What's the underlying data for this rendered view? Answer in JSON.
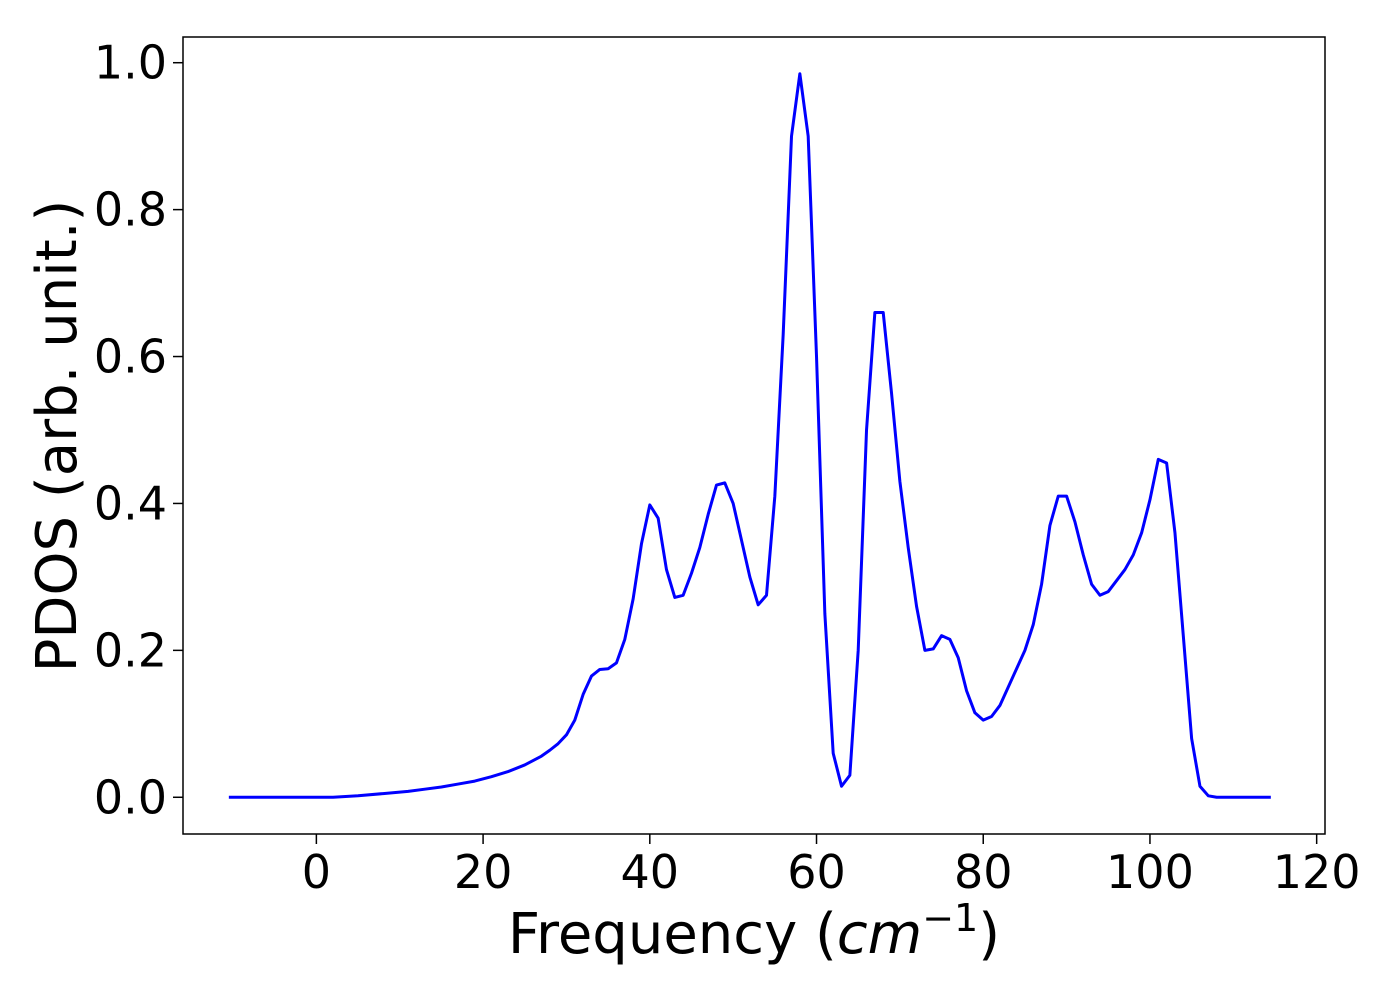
{
  "chart_data": {
    "type": "line",
    "title": "",
    "xlabel": "Frequency",
    "xlabel_unit": "cm",
    "xlabel_unit_exponent": "−1",
    "ylabel": "PDOS (arb. unit.)",
    "xlim": [
      -16,
      121
    ],
    "ylim": [
      -0.05,
      1.035
    ],
    "xticks": [
      0,
      20,
      40,
      60,
      80,
      100,
      120
    ],
    "xtick_labels": [
      "0",
      "20",
      "40",
      "60",
      "80",
      "100",
      "120"
    ],
    "yticks": [
      0.0,
      0.2,
      0.4,
      0.6,
      0.8,
      1.0
    ],
    "ytick_labels": [
      "0.0",
      "0.2",
      "0.4",
      "0.6",
      "0.8",
      "1.0"
    ],
    "grid": false,
    "legend": "none",
    "line_color": "#0000ff",
    "series": [
      {
        "x": [
          -10.5,
          0,
          2,
          5,
          8,
          11,
          13,
          15,
          17,
          19,
          21,
          23,
          25,
          26,
          27,
          28,
          29,
          30,
          31,
          32,
          33,
          34,
          35,
          36,
          37,
          38,
          39,
          40,
          41,
          42,
          43,
          44,
          45,
          46,
          47,
          48,
          49,
          50,
          51,
          52,
          53,
          54,
          55,
          56,
          57,
          58,
          59,
          60,
          61,
          62,
          63,
          64,
          65,
          66,
          67,
          68,
          69,
          70,
          71,
          72,
          73,
          74,
          75,
          76,
          77,
          78,
          79,
          80,
          81,
          82,
          83,
          84,
          85,
          86,
          87,
          88,
          89,
          90,
          91,
          92,
          93,
          94,
          95,
          96,
          97,
          98,
          99,
          100,
          101,
          102,
          103,
          104,
          105,
          106,
          107,
          108,
          110,
          114.5
        ],
        "y": [
          0.0,
          0.0,
          0.0,
          0.002,
          0.005,
          0.008,
          0.011,
          0.014,
          0.018,
          0.022,
          0.028,
          0.035,
          0.044,
          0.05,
          0.056,
          0.064,
          0.073,
          0.085,
          0.105,
          0.14,
          0.165,
          0.174,
          0.175,
          0.183,
          0.215,
          0.27,
          0.345,
          0.398,
          0.38,
          0.31,
          0.272,
          0.275,
          0.305,
          0.34,
          0.385,
          0.425,
          0.428,
          0.4,
          0.35,
          0.3,
          0.262,
          0.275,
          0.41,
          0.63,
          0.9,
          0.985,
          0.9,
          0.6,
          0.25,
          0.06,
          0.015,
          0.03,
          0.2,
          0.5,
          0.66,
          0.66,
          0.55,
          0.43,
          0.34,
          0.26,
          0.2,
          0.202,
          0.22,
          0.215,
          0.19,
          0.145,
          0.115,
          0.105,
          0.11,
          0.125,
          0.15,
          0.175,
          0.2,
          0.235,
          0.29,
          0.37,
          0.41,
          0.41,
          0.375,
          0.33,
          0.29,
          0.275,
          0.28,
          0.295,
          0.31,
          0.33,
          0.36,
          0.405,
          0.46,
          0.455,
          0.36,
          0.22,
          0.08,
          0.015,
          0.002,
          0.0,
          0.0,
          0.0
        ]
      }
    ]
  }
}
